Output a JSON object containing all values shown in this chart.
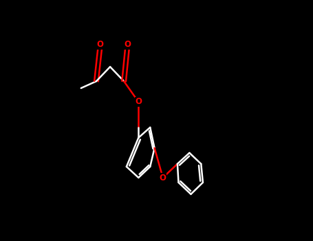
{
  "bg_color": "#000000",
  "bond_color": "#ffffff",
  "oxygen_color": "#ff0000",
  "line_width": 1.8,
  "figsize": [
    4.55,
    3.5
  ],
  "dpi": 100,
  "xlim": [
    -0.1,
    1.0
  ],
  "ylim": [
    -0.85,
    0.75
  ]
}
